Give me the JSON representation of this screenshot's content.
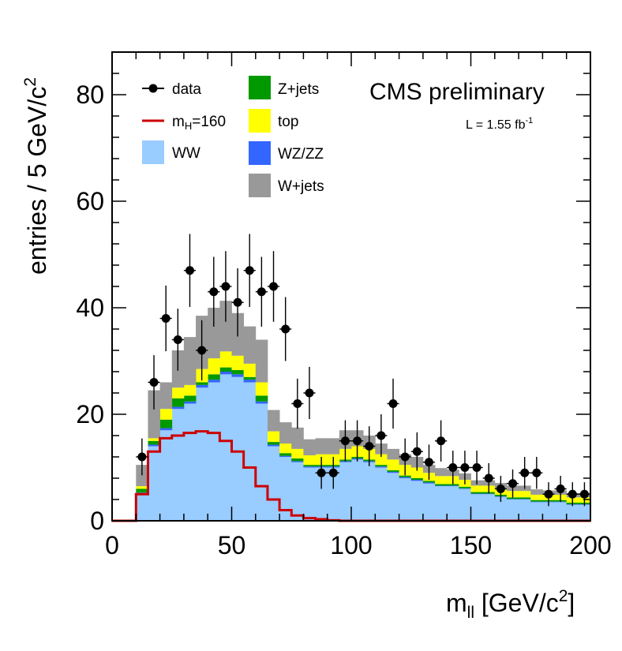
{
  "chart_data": {
    "type": "bar",
    "title": "CMS preliminary",
    "luminosity": {
      "prefix": "L = 1.55 fb",
      "exponent": "-1"
    },
    "xlabel": {
      "main": "m",
      "sub": "ll",
      "unit_open": " [GeV/c",
      "sup": "2",
      "unit_close": "]"
    },
    "ylabel": {
      "main": "entries / 5 GeV/c",
      "sup": "2"
    },
    "xlim": [
      0,
      200
    ],
    "ylim": [
      0,
      88
    ],
    "xticks": [
      0,
      50,
      100,
      150,
      200
    ],
    "yticks": [
      0,
      20,
      40,
      60,
      80
    ],
    "bin_width": 5,
    "bin_edges_start": 0,
    "stack_order": [
      "WW",
      "WZ/ZZ",
      "Z+jets",
      "top",
      "W+jets"
    ],
    "series": [
      {
        "name": "WW",
        "color": "#99ccff",
        "values": [
          0,
          0,
          5,
          14,
          17,
          21,
          22,
          25,
          26,
          27.5,
          27,
          26,
          22,
          14,
          12,
          11,
          10,
          10,
          10,
          11,
          11.5,
          11,
          10,
          9,
          8,
          7.5,
          7,
          6.5,
          6.5,
          6,
          5,
          5,
          4.5,
          4,
          4,
          3.5,
          3.5,
          3.5,
          3,
          3
        ]
      },
      {
        "name": "WZ/ZZ",
        "color": "#3366ff",
        "values": [
          0,
          0,
          0.3,
          0.3,
          0.4,
          0.4,
          0.4,
          0.5,
          0.5,
          0.5,
          0.5,
          0.5,
          0.4,
          0.3,
          0.2,
          0.2,
          0.2,
          0.2,
          0.2,
          0.2,
          0.2,
          0.2,
          0.2,
          0.2,
          0.2,
          0.2,
          0.2,
          0.1,
          0.1,
          0.1,
          0.1,
          0.1,
          0.1,
          0.1,
          0.1,
          0.1,
          0.1,
          0.1,
          0.1,
          0.1
        ]
      },
      {
        "name": "Z+jets",
        "color": "#009900",
        "values": [
          0,
          0,
          0.7,
          0.7,
          1.6,
          1.6,
          1.1,
          0.5,
          1,
          0.8,
          0.8,
          0.5,
          1.1,
          0.5,
          0.5,
          0.5,
          0.3,
          0.3,
          0.3,
          0.3,
          0.3,
          0.3,
          0.3,
          0.3,
          0.3,
          0.3,
          0.3,
          0.3,
          0.3,
          0.3,
          0.3,
          0.3,
          0.3,
          0.3,
          0.3,
          0.3,
          0.3,
          0.3,
          0.3,
          0.3
        ]
      },
      {
        "name": "top",
        "color": "#ffff00",
        "values": [
          0,
          0,
          0.5,
          0.5,
          2,
          2,
          2,
          2.5,
          3,
          3,
          2.7,
          2.5,
          2.5,
          2,
          1.8,
          1.8,
          1.8,
          2,
          2,
          2,
          2,
          2,
          2,
          2,
          2,
          2,
          1.5,
          1.5,
          1.5,
          1.3,
          1.2,
          1.2,
          1.2,
          1.2,
          1.2,
          1,
          1,
          1,
          1,
          1
        ]
      },
      {
        "name": "W+jets",
        "color": "#999999",
        "values": [
          0,
          0,
          4,
          9,
          5,
          7,
          9,
          10,
          9.5,
          9.5,
          8,
          7,
          8,
          4,
          4,
          4,
          3,
          3,
          3,
          3.5,
          3,
          2.5,
          2,
          2,
          2,
          2,
          1.5,
          1.5,
          1.2,
          1.2,
          1,
          1,
          1,
          1,
          1,
          1,
          0.8,
          0.8,
          0.8,
          0.8
        ]
      }
    ],
    "signal": {
      "name": "m_H=160",
      "color": "#cc0000",
      "values": [
        0,
        0,
        5,
        13,
        15.5,
        16,
        16.5,
        16.8,
        16.5,
        15,
        13,
        10,
        6.5,
        4,
        2,
        1,
        0.5,
        0.3,
        0.1,
        0,
        0,
        0,
        0,
        0,
        0,
        0,
        0,
        0,
        0,
        0,
        0,
        0,
        0,
        0,
        0,
        0,
        0,
        0,
        0,
        0
      ]
    },
    "data": {
      "name": "data",
      "x": [
        12.5,
        17.5,
        22.5,
        27.5,
        32.5,
        37.5,
        42.5,
        47.5,
        52.5,
        57.5,
        62.5,
        67.5,
        72.5,
        77.5,
        82.5,
        87.5,
        92.5,
        97.5,
        102.5,
        107.5,
        112.5,
        117.5,
        122.5,
        127.5,
        132.5,
        137.5,
        142.5,
        147.5,
        152.5,
        157.5,
        162.5,
        167.5,
        172.5,
        177.5,
        182.5,
        187.5,
        192.5,
        197.5
      ],
      "y": [
        12,
        26,
        38,
        34,
        47,
        32,
        43,
        44,
        41,
        47,
        43,
        44,
        36,
        22,
        24,
        9,
        9,
        15,
        15,
        14,
        16,
        22,
        12,
        13,
        11,
        15,
        10,
        10,
        10,
        8,
        6,
        7,
        9,
        9,
        5,
        6,
        5,
        5
      ]
    },
    "legend": [
      {
        "label": "data",
        "marker": "point"
      },
      {
        "label_main": "m",
        "label_sub": "H",
        "label_rest": "=160",
        "marker": "line"
      },
      {
        "label": "WW",
        "marker": "box"
      },
      {
        "label": "Z+jets",
        "marker": "box"
      },
      {
        "label": "top",
        "marker": "box"
      },
      {
        "label": "WZ/ZZ",
        "marker": "box"
      },
      {
        "label": "W+jets",
        "marker": "box"
      }
    ]
  }
}
